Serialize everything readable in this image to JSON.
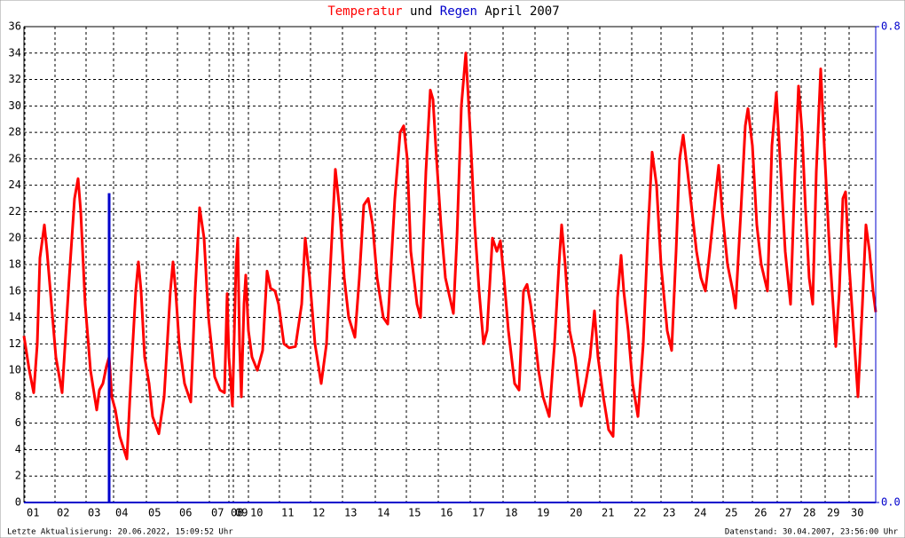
{
  "chart_data": {
    "type": "line",
    "title_join": "und",
    "title_suffix": "April 2007",
    "footer_left": "Letzte Aktualisierung: 20.06.2022, 15:09:52 Uhr",
    "footer_right": "Datenstand: 30.04.2007, 23:56:00 Uhr",
    "xlim": [
      0,
      960
    ],
    "xticks": [
      {
        "value": 1,
        "label": "01"
      },
      {
        "value": 35,
        "label": "02"
      },
      {
        "value": 70,
        "label": "03"
      },
      {
        "value": 101,
        "label": "04"
      },
      {
        "value": 138,
        "label": "05"
      },
      {
        "value": 173,
        "label": "06"
      },
      {
        "value": 209,
        "label": "07"
      },
      {
        "value": 231,
        "label": "08"
      },
      {
        "value": 236,
        "label": "09"
      },
      {
        "value": 253,
        "label": "10"
      },
      {
        "value": 288,
        "label": "11"
      },
      {
        "value": 323,
        "label": "12"
      },
      {
        "value": 359,
        "label": "13"
      },
      {
        "value": 396,
        "label": "14"
      },
      {
        "value": 431,
        "label": "15"
      },
      {
        "value": 467,
        "label": "16"
      },
      {
        "value": 503,
        "label": "17"
      },
      {
        "value": 540,
        "label": "18"
      },
      {
        "value": 576,
        "label": "19"
      },
      {
        "value": 613,
        "label": "20"
      },
      {
        "value": 649,
        "label": "21"
      },
      {
        "value": 685,
        "label": "22"
      },
      {
        "value": 718,
        "label": "23"
      },
      {
        "value": 753,
        "label": "24"
      },
      {
        "value": 788,
        "label": "25"
      },
      {
        "value": 821,
        "label": "26"
      },
      {
        "value": 849,
        "label": "27"
      },
      {
        "value": 876,
        "label": "28"
      },
      {
        "value": 903,
        "label": "29"
      },
      {
        "value": 930,
        "label": "30"
      }
    ],
    "ylim": [
      0,
      36
    ],
    "yticks": [
      0,
      2,
      4,
      6,
      8,
      10,
      12,
      14,
      16,
      18,
      20,
      22,
      24,
      26,
      28,
      30,
      32,
      34,
      36
    ],
    "y2lim": [
      0,
      0.8
    ],
    "y2ticks": [
      {
        "value": 0,
        "label": "0.0"
      },
      {
        "value": 0.8,
        "label": "0.8"
      }
    ],
    "grid": true,
    "series": [
      {
        "name": "Temperatur",
        "color": "#ff0000",
        "x": [
          0,
          6,
          11,
          15,
          18,
          23,
          26,
          31,
          36,
          43,
          51,
          57,
          61,
          64,
          69,
          75,
          82,
          85,
          89,
          93,
          96,
          99,
          103,
          108,
          116,
          121,
          126,
          129,
          132,
          136,
          141,
          145,
          152,
          158,
          165,
          168,
          171,
          175,
          181,
          188,
          193,
          198,
          203,
          208,
          215,
          221,
          226,
          229,
          231,
          235,
          239,
          241,
          243,
          245,
          248,
          250,
          253,
          257,
          263,
          269,
          274,
          278,
          283,
          287,
          293,
          299,
          306,
          313,
          317,
          322,
          328,
          335,
          341,
          347,
          351,
          356,
          361,
          366,
          373,
          378,
          383,
          388,
          393,
          398,
          405,
          410,
          418,
          424,
          428,
          432,
          436,
          443,
          447,
          453,
          458,
          461,
          465,
          470,
          475,
          484,
          488,
          493,
          498,
          503,
          508,
          513,
          518,
          522,
          528,
          533,
          537,
          541,
          546,
          553,
          558,
          563,
          567,
          571,
          575,
          580,
          585,
          592,
          598,
          603,
          606,
          610,
          615,
          621,
          628,
          633,
          638,
          643,
          647,
          653,
          659,
          664,
          669,
          673,
          676,
          681,
          686,
          692,
          698,
          703,
          708,
          713,
          718,
          725,
          730,
          735,
          739,
          743,
          748,
          753,
          758,
          763,
          768,
          773,
          779,
          783,
          787,
          793,
          799,
          802,
          808,
          813,
          816,
          821,
          826,
          831,
          838,
          843,
          848,
          853,
          858,
          864,
          869,
          873,
          877,
          881,
          885,
          889,
          893,
          898,
          902,
          908,
          915,
          919,
          923,
          926,
          930,
          935,
          940,
          945,
          949,
          953,
          957,
          960
        ],
        "values": [
          12.6,
          10,
          8.3,
          12,
          18.5,
          21,
          19,
          15,
          11,
          8.3,
          17,
          23,
          24.5,
          22,
          15,
          10,
          7,
          8.5,
          9,
          10.3,
          11,
          8,
          7,
          5,
          3.3,
          10,
          16,
          18.2,
          16,
          11,
          9,
          6.5,
          5.2,
          8,
          16,
          18.2,
          16,
          12,
          9,
          7.6,
          16,
          22.3,
          20,
          14,
          9.5,
          8.5,
          8.3,
          15.8,
          11,
          7.3,
          18,
          20,
          12,
          8,
          15,
          17.2,
          13,
          11,
          10,
          11.5,
          17.5,
          16.2,
          16,
          15,
          12,
          11.7,
          11.8,
          15,
          20,
          17,
          12,
          9,
          12,
          20,
          25.2,
          22,
          17,
          14,
          12.5,
          17,
          22.5,
          23,
          21,
          17,
          14,
          13.5,
          23,
          28,
          28.5,
          26,
          19,
          15,
          14,
          25,
          31.2,
          30.5,
          26,
          21,
          17,
          14.3,
          20,
          30,
          34,
          28,
          21,
          16,
          12,
          13,
          20,
          19,
          19.8,
          17,
          13,
          9,
          8.5,
          16,
          16.5,
          15,
          13,
          10,
          8,
          6.5,
          12,
          18,
          21,
          18,
          13,
          11,
          7.3,
          9,
          11,
          14.5,
          11,
          8,
          5.5,
          5,
          15.5,
          18.7,
          16,
          13,
          9,
          6.5,
          12,
          20,
          26.5,
          24,
          18,
          13,
          11.5,
          19,
          26,
          27.8,
          25,
          22,
          19,
          17,
          16,
          19,
          23,
          25.5,
          22,
          18,
          16,
          14.7,
          22,
          28.5,
          29.8,
          27,
          21,
          18,
          16,
          27,
          31,
          25,
          19,
          15,
          25,
          31.5,
          28,
          22,
          17,
          15,
          25,
          32.8,
          27,
          19,
          11.8,
          16,
          23,
          23.5,
          18,
          13,
          8,
          15,
          21,
          19,
          16,
          14.4
        ]
      },
      {
        "name": "Regen",
        "color": "#0000cc",
        "axis": "y2",
        "type": "bar",
        "x": [
          96
        ],
        "values": [
          0.52
        ]
      }
    ]
  }
}
